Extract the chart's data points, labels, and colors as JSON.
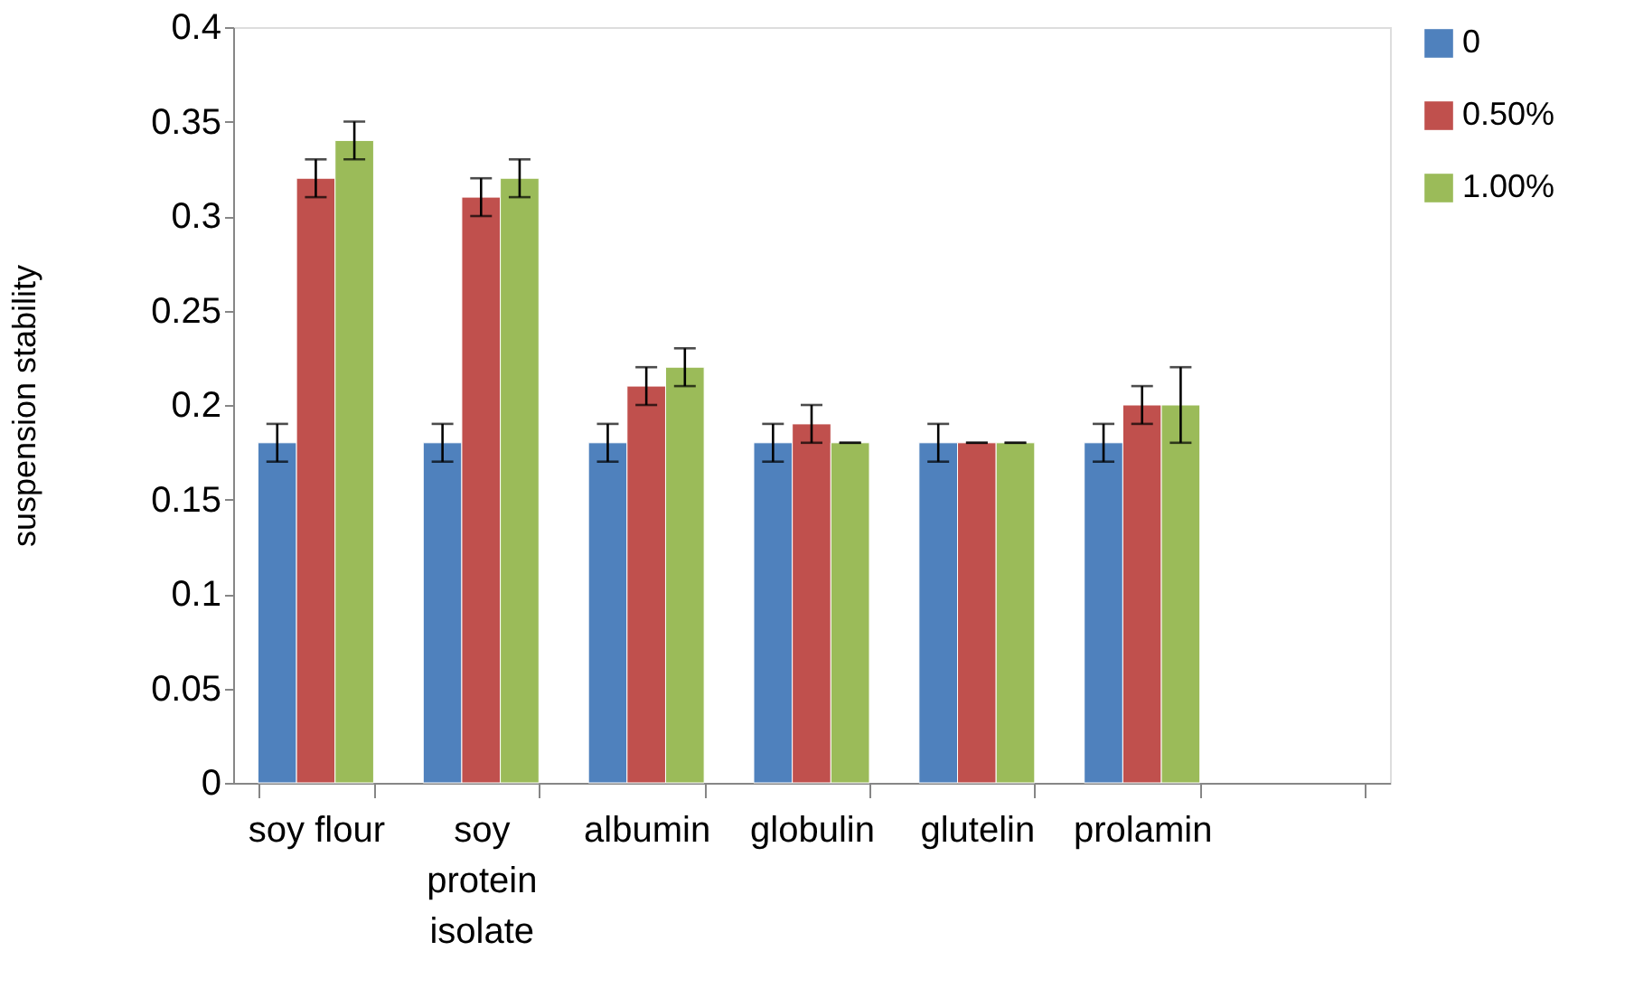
{
  "chart_data": {
    "type": "bar",
    "ylabel": "suspension stability",
    "categories": [
      "soy flour",
      "soy protein isolate",
      "albumin",
      "globulin",
      "glutelin",
      "prolamin",
      null
    ],
    "series": [
      {
        "name": "0",
        "color": "#4f81bd",
        "values": [
          0.18,
          0.18,
          0.18,
          0.18,
          0.18,
          0.18,
          null
        ],
        "errors": [
          0.01,
          0.01,
          0.01,
          0.01,
          0.01,
          0.01,
          null
        ]
      },
      {
        "name": "0.50%",
        "color": "#c0504d",
        "values": [
          0.32,
          0.31,
          0.21,
          0.19,
          0.18,
          0.2,
          null
        ],
        "errors": [
          0.01,
          0.01,
          0.01,
          0.01,
          0,
          0.01,
          null
        ]
      },
      {
        "name": "1.00%",
        "color": "#9bbb59",
        "values": [
          0.34,
          0.32,
          0.22,
          0.18,
          0.18,
          0.2,
          null
        ],
        "errors": [
          0.01,
          0.01,
          0.01,
          0,
          0,
          0.02,
          null
        ]
      }
    ],
    "ylim": [
      0,
      0.4
    ],
    "yticks": [
      0,
      0.05,
      0.1,
      0.15,
      0.2,
      0.25,
      0.3,
      0.35,
      0.4
    ],
    "grid": false,
    "legend": "right"
  }
}
